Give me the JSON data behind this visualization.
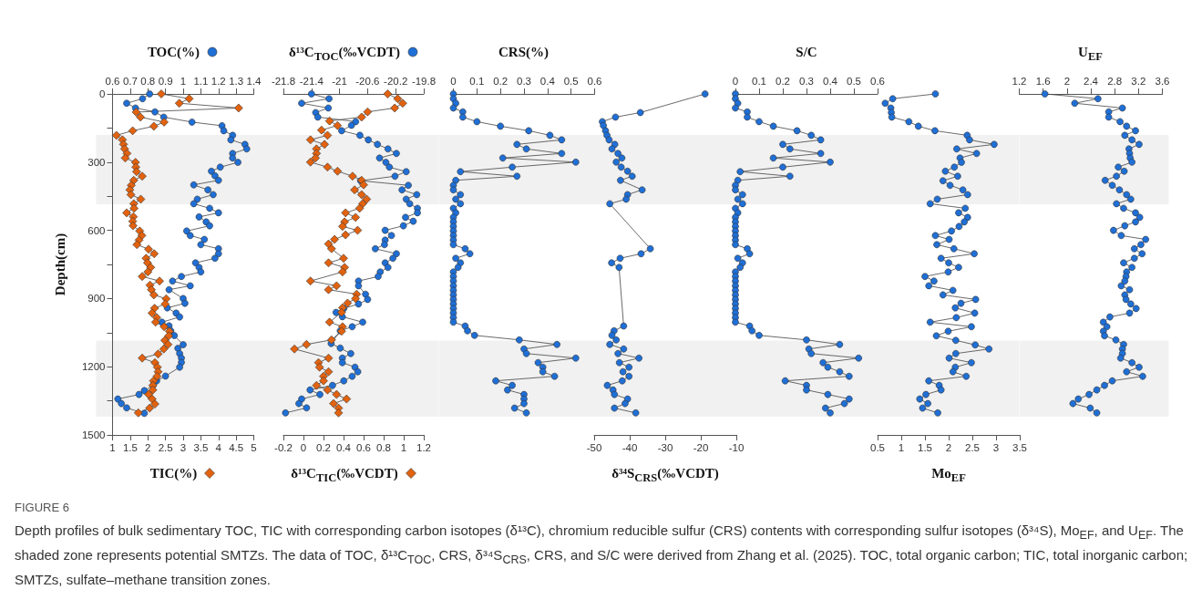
{
  "chart_data": [
    {
      "type": "line",
      "marker": "circle",
      "xlabel": "TIC(%)",
      "x2label": "TOC(%)",
      "title": "FIGURE 6",
      "annotations": [
        "Depth profiles of bulk sedimentary TOC, TIC with corresponding carbon isotopes (δ¹³C), chromium reducible sulfur (CRS) contents with corresponding sulfur isotopes (δ³⁴S), Mo$_{EF}$, and U$_{EF}$. The shaded zone represents potential SMTZs. The data of TOC, δ¹³C$_{TOC}$, CRS, δ³⁴S$_{CRS}$, CRS, and S/C were derived from Zhang et al. (2025). TOC, total organic carbon; TIC, total inorganic carbon; SMTZs, sulfate–methane transition zones."
      ],
      "ylabel": "Depth(cm)",
      "ylim": [
        1500,
        0
      ],
      "yticks": [
        0,
        {
          "value": 150,
          "label": null
        },
        300,
        {
          "value": 450,
          "label": null
        },
        600,
        {
          "value": 750,
          "label": null
        },
        900,
        {
          "value": 1050,
          "label": null
        },
        1200,
        {
          "value": 1350,
          "label": null
        },
        1500
      ],
      "x2lim": [
        0.6,
        1.4
      ],
      "x2ticks": [
        0.6,
        0.7,
        0.8,
        0.9,
        1,
        1.1,
        1.2,
        1.3,
        1.4
      ],
      "xlim": [
        1,
        5
      ],
      "xticks": [
        1,
        1.5,
        2,
        2.5,
        3,
        3.5,
        4,
        4.5,
        5
      ],
      "bands": [
        {
          "axis": "y",
          "from": 180,
          "to": 485,
          "color": "#f1f1f1"
        },
        {
          "axis": "y",
          "from": 1085,
          "to": 1420,
          "color": "#f1f1f1"
        }
      ],
      "series": [
        {
          "color": "#1f6fd6",
          "axis": "x2",
          "x": [
            0.81,
            0.77,
            0.68,
            0.73,
            0.84,
            0.89,
            1.05,
            1.22,
            1.23,
            1.28,
            1.27,
            1.35,
            1.36,
            1.28,
            1.28,
            1.31,
            1.21,
            1.16,
            1.18,
            1.2,
            1.06,
            1.14,
            1.17,
            1.08,
            1.06,
            1.15,
            1.2,
            1.09,
            1.13,
            1.15,
            1.02,
            1.04,
            1.12,
            1.1,
            1.2,
            1.2,
            1.18,
            1.07,
            1.09,
            1.1,
            0.99,
            0.94,
            1.04,
            0.92,
            1.0,
            1.01,
            0.91,
            0.96,
            0.98,
            0.88,
            0.92,
            0.93,
            0.95,
            1.0,
            0.97,
            0.98,
            0.99,
            0.99,
            0.98,
            0.9,
            0.85,
            0.83,
            0.78,
            0.75,
            0.63,
            0.65,
            0.68,
            0.78
          ],
          "values": [
            0,
            21,
            41,
            62,
            79,
            102,
            124,
            140,
            162,
            182,
            202,
            222,
            242,
            262,
            282,
            301,
            322,
            340,
            360,
            380,
            400,
            422,
            443,
            463,
            483,
            503,
            523,
            541,
            563,
            580,
            603,
            623,
            640,
            663,
            681,
            703,
            723,
            743,
            763,
            783,
            803,
            823,
            844,
            861,
            900,
            921,
            941,
            964,
            981,
            1004,
            1020,
            1042,
            1063,
            1103,
            1119,
            1142,
            1162,
            1181,
            1202,
            1241,
            1262,
            1282,
            1305,
            1322,
            1342,
            1362,
            1381,
            1405
          ]
        },
        {
          "color": "#e2620f",
          "marker": "diamond",
          "x": [
            2.38,
            3.17,
            2.89,
            4.57,
            1.67,
            1.79,
            2.46,
            2.17,
            1.57,
            1.11,
            1.28,
            1.31,
            1.34,
            1.41,
            1.36,
            1.65,
            1.66,
            1.68,
            1.84,
            1.6,
            1.53,
            1.49,
            1.52,
            1.8,
            1.6,
            1.61,
            1.4,
            1.59,
            1.57,
            1.58,
            1.77,
            1.83,
            1.75,
            1.69,
            2.02,
            2.18,
            1.95,
            1.99,
            2.08,
            2.0,
            1.84,
            2.33,
            2.06,
            2.1,
            2.17,
            2.52,
            2.49,
            2.19,
            2.12,
            2.25,
            2.22,
            2.46,
            2.61,
            2.59,
            2.48,
            2.57,
            2.45,
            2.29,
            1.84,
            2.2,
            2.27,
            2.29,
            2.26,
            2.16,
            2.14,
            2.14,
            2.02,
            2.12,
            2.2,
            2.05,
            1.73
          ],
          "values": [
            0,
            21,
            41,
            62,
            80,
            102,
            124,
            142,
            162,
            182,
            202,
            222,
            242,
            262,
            282,
            301,
            322,
            342,
            362,
            380,
            402,
            422,
            443,
            463,
            483,
            503,
            523,
            540,
            560,
            580,
            603,
            623,
            643,
            663,
            683,
            703,
            723,
            743,
            763,
            783,
            803,
            823,
            841,
            861,
            884,
            901,
            924,
            943,
            964,
            984,
            1004,
            1024,
            1044,
            1064,
            1084,
            1102,
            1122,
            1144,
            1162,
            1182,
            1202,
            1222,
            1242,
            1262,
            1282,
            1302,
            1322,
            1342,
            1364,
            1382,
            1403
          ]
        }
      ]
    },
    {
      "type": "line",
      "marker": "circle",
      "xlabel": "δ¹³C$_{TIC}$(‰VCDT)",
      "x2label": "δ¹³C$_{TOC}$(‰VCDT)",
      "tick_labels": "x",
      "ylim": [
        1500,
        0
      ],
      "x2lim": [
        -21.8,
        -19.8
      ],
      "x2ticks": [
        -21.8,
        -21.4,
        -21,
        -20.6,
        -20.2,
        -19.8
      ],
      "xlim": [
        -0.2,
        1.2
      ],
      "xticks": [
        -0.2,
        0,
        0.2,
        0.4,
        0.6,
        0.8,
        1,
        1.2
      ],
      "bands": [
        {
          "axis": "y",
          "from": 180,
          "to": 485,
          "color": "#f1f1f1"
        },
        {
          "axis": "y",
          "from": 1085,
          "to": 1420,
          "color": "#f1f1f1"
        }
      ],
      "series": [
        {
          "color": "#1f6fd6",
          "axis": "x2",
          "x": [
            -21.4,
            -21.15,
            -21.54,
            -21.16,
            -21.34,
            -21.31,
            -20.77,
            -20.83,
            -20.97,
            -20.71,
            -20.59,
            -20.46,
            -20.31,
            -20.19,
            -20.43,
            -20.34,
            -20.29,
            -20.05,
            -20.21,
            -20.7,
            -20.02,
            -20.11,
            -19.9,
            -20.05,
            -20.0,
            -19.89,
            -19.89,
            -20.06,
            -19.95,
            -20.09,
            -20.35,
            -20.26,
            -20.35,
            -20.36,
            -20.49,
            -20.19,
            -20.24,
            -20.35,
            -20.31,
            -20.42,
            -20.45,
            -20.73,
            -20.73,
            -20.63,
            -20.6,
            -20.73,
            -20.94,
            -21.05,
            -20.96,
            -20.67,
            -20.82,
            -20.99,
            -21.12,
            -20.99,
            -20.84,
            -20.96,
            -20.96,
            -20.78,
            -20.74,
            -20.82,
            -20.94,
            -21.1,
            -21.42,
            -21.28,
            -21.54,
            -21.58,
            -21.47,
            -21.77
          ],
          "values": [
            0,
            21,
            41,
            62,
            82,
            102,
            122,
            138,
            162,
            182,
            202,
            222,
            242,
            262,
            282,
            301,
            322,
            342,
            362,
            382,
            402,
            422,
            443,
            463,
            483,
            503,
            523,
            543,
            560,
            580,
            600,
            623,
            643,
            663,
            681,
            703,
            723,
            743,
            763,
            783,
            803,
            823,
            844,
            881,
            904,
            924,
            944,
            961,
            980,
            1004,
            1024,
            1042,
            1098,
            1118,
            1142,
            1162,
            1182,
            1202,
            1222,
            1242,
            1262,
            1282,
            1302,
            1322,
            1342,
            1362,
            1381,
            1403
          ]
        },
        {
          "color": "#e2620f",
          "marker": "diamond",
          "x": [
            0.84,
            0.94,
            0.99,
            0.91,
            0.64,
            0.58,
            0.26,
            0.34,
            0.18,
            0.24,
            0.07,
            0.21,
            0.13,
            0.13,
            0.12,
            0.07,
            0.24,
            0.34,
            0.49,
            0.58,
            0.6,
            0.51,
            0.58,
            0.63,
            0.59,
            0.56,
            0.42,
            0.52,
            0.41,
            0.39,
            0.54,
            0.42,
            0.31,
            0.25,
            0.28,
            0.4,
            0.25,
            0.41,
            0.39,
            0.07,
            0.33,
            0.25,
            0.53,
            0.52,
            0.44,
            0.39,
            0.38,
            0.26,
            0.39,
            0.38,
            0.28,
            0.03,
            -0.09,
            0.25,
            0.15,
            0.16,
            0.25,
            0.2,
            0.2,
            0.13,
            0.24,
            0.33,
            0.43,
            0.3,
            0.35,
            0.35
          ],
          "values": [
            0,
            21,
            41,
            62,
            79,
            102,
            119,
            139,
            159,
            182,
            202,
            222,
            242,
            262,
            282,
            300,
            322,
            340,
            362,
            380,
            400,
            422,
            443,
            463,
            483,
            503,
            523,
            543,
            563,
            583,
            600,
            620,
            640,
            660,
            681,
            723,
            743,
            763,
            783,
            823,
            844,
            861,
            881,
            900,
            920,
            941,
            961,
            1004,
            1024,
            1044,
            1082,
            1102,
            1122,
            1162,
            1182,
            1202,
            1222,
            1242,
            1262,
            1282,
            1302,
            1322,
            1342,
            1362,
            1382,
            1403
          ]
        }
      ]
    },
    {
      "type": "line",
      "marker": "circle",
      "tick_labels": "x",
      "ylim": [
        1500,
        0
      ],
      "xlabel": "CRS(%)",
      "xlim": [
        0,
        0.6
      ],
      "xticks": [
        0,
        0.1,
        0.2,
        0.3,
        0.4,
        0.5,
        0.6
      ],
      "bands": [
        {
          "axis": "y",
          "from": 180,
          "to": 485,
          "color": "#f1f1f1"
        },
        {
          "axis": "y",
          "from": 1085,
          "to": 1420,
          "color": "#f1f1f1"
        }
      ],
      "series": [
        {
          "color": "#1f6fd6",
          "x": [
            0,
            0,
            0.01,
            0,
            0.04,
            0.04,
            0.1,
            0.2,
            0.32,
            0.41,
            0.46,
            0.27,
            0.31,
            0.46,
            0.21,
            0.52,
            0.25,
            0.03,
            0.27,
            0.01,
            0,
            0,
            0.03,
            0.01,
            0.03,
            0,
            0.01,
            0,
            0,
            0,
            0,
            0,
            0,
            0,
            0.05,
            0.07,
            0.01,
            0.03,
            0.02,
            0,
            0,
            0,
            0,
            0,
            0,
            0,
            0,
            0,
            0,
            0,
            0,
            0.05,
            0.06,
            0.09,
            0.28,
            0.44,
            0.3,
            0.31,
            0.52,
            0.36,
            0.38,
            0.38,
            0.43,
            0.18,
            0.25,
            0.23,
            0.3,
            0.3,
            0.3,
            0.26,
            0.31
          ],
          "values": [
            0,
            21,
            41,
            62,
            79,
            102,
            122,
            142,
            162,
            182,
            202,
            222,
            242,
            262,
            282,
            300,
            322,
            342,
            362,
            380,
            402,
            422,
            443,
            463,
            483,
            503,
            523,
            543,
            563,
            583,
            603,
            623,
            643,
            663,
            681,
            703,
            723,
            743,
            763,
            783,
            803,
            823,
            844,
            864,
            884,
            904,
            924,
            944,
            964,
            984,
            1004,
            1021,
            1042,
            1062,
            1082,
            1102,
            1122,
            1142,
            1162,
            1182,
            1202,
            1222,
            1242,
            1262,
            1282,
            1302,
            1322,
            1342,
            1362,
            1382,
            1403
          ]
        }
      ]
    },
    {
      "type": "line",
      "marker": "circle",
      "tick_labels": "x",
      "ylim": [
        1500,
        0
      ],
      "xlabel": "δ³⁴S$_{CRS}$(‰VCDT)",
      "xlim": [
        -50,
        -10
      ],
      "xticks": [
        -50,
        -40,
        -30,
        -20,
        -10
      ],
      "bands": [
        {
          "axis": "y",
          "from": 180,
          "to": 485,
          "color": "#f1f1f1"
        },
        {
          "axis": "y",
          "from": 1085,
          "to": 1420,
          "color": "#f1f1f1"
        }
      ],
      "series": [
        {
          "color": "#1f6fd6",
          "x": [
            -18.8,
            -37.0,
            -44.0,
            -47.7,
            -47.4,
            -46.8,
            -46.4,
            -45.8,
            -44.2,
            -45.0,
            -43.3,
            -42.2,
            -43.8,
            -42.4,
            -40.6,
            -39.3,
            -42.6,
            -36.5,
            -40.6,
            -41.0,
            -45.6,
            -34.2,
            -36.8,
            -42.7,
            -45.1,
            -43.0,
            -41.7,
            -44.4,
            -45.0,
            -43.8,
            -45.6,
            -41.7,
            -43.3,
            -37.4,
            -42.9,
            -40.2,
            -41.9,
            -40.2,
            -42.1,
            -46.3,
            -44.7,
            -44.3,
            -40.6,
            -41.3,
            -44.3,
            -38.3
          ],
          "values": [
            0,
            82,
            102,
            122,
            139,
            162,
            182,
            202,
            222,
            242,
            262,
            282,
            300,
            322,
            340,
            362,
            380,
            422,
            443,
            463,
            483,
            681,
            703,
            723,
            743,
            763,
            1021,
            1042,
            1062,
            1082,
            1102,
            1122,
            1142,
            1162,
            1182,
            1202,
            1222,
            1242,
            1262,
            1282,
            1302,
            1322,
            1342,
            1362,
            1382,
            1403
          ]
        }
      ]
    },
    {
      "type": "line",
      "marker": "circle",
      "tick_labels": "x",
      "ylim": [
        1500,
        0
      ],
      "xlabel": "S/C",
      "xlim": [
        0,
        0.6
      ],
      "xticks": [
        0,
        0.1,
        0.2,
        0.3,
        0.4,
        0.5,
        0.6
      ],
      "bands": [
        {
          "axis": "y",
          "from": 180,
          "to": 485,
          "color": "#f1f1f1"
        },
        {
          "axis": "y",
          "from": 1085,
          "to": 1420,
          "color": "#f1f1f1"
        }
      ],
      "series": [
        {
          "color": "#1f6fd6",
          "x": [
            0,
            0,
            0.01,
            0,
            0.05,
            0.05,
            0.1,
            0.16,
            0.26,
            0.32,
            0.36,
            0.2,
            0.23,
            0.36,
            0.16,
            0.4,
            0.2,
            0.02,
            0.23,
            0.01,
            0,
            0,
            0.03,
            0.01,
            0.03,
            0,
            0.01,
            0,
            0,
            0,
            0,
            0,
            0,
            0,
            0.05,
            0.06,
            0.01,
            0.03,
            0.02,
            0,
            0,
            0,
            0,
            0,
            0,
            0,
            0,
            0,
            0,
            0,
            0,
            0.06,
            0.07,
            0.1,
            0.3,
            0.44,
            0.31,
            0.32,
            0.52,
            0.37,
            0.39,
            0.44,
            0.48,
            0.21,
            0.3,
            0.3,
            0.39,
            0.48,
            0.46,
            0.38,
            0.4
          ],
          "values": [
            0,
            21,
            41,
            62,
            79,
            102,
            122,
            142,
            162,
            182,
            202,
            222,
            242,
            262,
            282,
            300,
            322,
            342,
            362,
            380,
            402,
            422,
            443,
            463,
            483,
            503,
            523,
            543,
            563,
            583,
            603,
            623,
            643,
            663,
            681,
            703,
            723,
            743,
            763,
            783,
            803,
            823,
            844,
            864,
            884,
            904,
            924,
            944,
            964,
            984,
            1004,
            1021,
            1042,
            1062,
            1082,
            1102,
            1122,
            1142,
            1162,
            1182,
            1202,
            1222,
            1242,
            1262,
            1282,
            1302,
            1322,
            1342,
            1362,
            1382,
            1403
          ]
        }
      ]
    },
    {
      "type": "line",
      "marker": "circle",
      "tick_labels": "x",
      "ylim": [
        1500,
        0
      ],
      "xlabel": "Mo$_{EF}$",
      "xlim": [
        0.5,
        3.5
      ],
      "xticks": [
        0.5,
        1,
        1.5,
        2,
        2.5,
        3,
        3.5
      ],
      "bands": [
        {
          "axis": "y",
          "from": 180,
          "to": 485,
          "color": "#f1f1f1"
        },
        {
          "axis": "y",
          "from": 1085,
          "to": 1420,
          "color": "#f1f1f1"
        }
      ],
      "series": [
        {
          "color": "#1f6fd6",
          "x": [
            1.72,
            0.82,
            0.66,
            0.78,
            0.79,
            0.8,
            1.16,
            1.36,
            1.71,
            2.39,
            2.44,
            2.96,
            2.17,
            2.59,
            2.24,
            2.27,
            2.12,
            1.93,
            2.19,
            1.88,
            2.03,
            2.3,
            2.4,
            1.76,
            1.61,
            2.35,
            2.21,
            2.4,
            2.33,
            2.22,
            2.06,
            1.72,
            2.01,
            1.75,
            2.11,
            2.54,
            1.84,
            2.0,
            2.21,
            1.99,
            1.5,
            1.69,
            1.58,
            2.09,
            1.88,
            2.57,
            2.26,
            2.14,
            2.55,
            2.16,
            1.61,
            2.48,
            1.99,
            1.74,
            2.15,
            2.56,
            2.85,
            2.15,
            2.01,
            2.48,
            2.14,
            2.09,
            2.37,
            1.58,
            1.8,
            1.84,
            1.52,
            1.39,
            1.56,
            1.45,
            1.77
          ],
          "values": [
            0,
            21,
            41,
            62,
            82,
            102,
            122,
            142,
            162,
            182,
            202,
            222,
            242,
            262,
            282,
            301,
            322,
            340,
            362,
            382,
            402,
            422,
            443,
            463,
            483,
            503,
            523,
            543,
            563,
            583,
            603,
            623,
            640,
            663,
            681,
            703,
            723,
            743,
            763,
            783,
            803,
            823,
            844,
            864,
            884,
            904,
            921,
            941,
            964,
            984,
            1004,
            1024,
            1044,
            1064,
            1084,
            1104,
            1122,
            1142,
            1162,
            1182,
            1202,
            1222,
            1242,
            1262,
            1282,
            1302,
            1322,
            1342,
            1362,
            1382,
            1403
          ]
        }
      ]
    },
    {
      "type": "line",
      "marker": "circle",
      "tick_labels": "x",
      "ylim": [
        1500,
        0
      ],
      "xlabel": "U$_{EF}$",
      "xlim": [
        1.2,
        3.6
      ],
      "xticks": [
        1.2,
        1.6,
        2,
        2.4,
        2.8,
        3.2,
        3.6
      ],
      "bands": [
        {
          "axis": "y",
          "from": 180,
          "to": 485,
          "color": "#f1f1f1"
        },
        {
          "axis": "y",
          "from": 1085,
          "to": 1420,
          "color": "#f1f1f1"
        }
      ],
      "series": [
        {
          "color": "#1f6fd6",
          "x": [
            1.63,
            2.52,
            2.13,
            2.93,
            2.7,
            2.7,
            2.89,
            3.0,
            3.15,
            2.97,
            3.09,
            3.21,
            3.04,
            3.05,
            3.06,
            3.09,
            2.86,
            2.96,
            2.83,
            2.64,
            2.76,
            2.88,
            3.0,
            3.07,
            2.83,
            2.95,
            3.15,
            3.22,
            3.15,
            2.97,
            2.78,
            2.91,
            3.32,
            3.24,
            3.13,
            3.26,
            3.13,
            2.95,
            3.09,
            3.0,
            2.99,
            2.97,
            2.91,
            3.05,
            2.97,
            2.99,
            3.07,
            3.16,
            3.05,
            2.72,
            2.61,
            2.67,
            2.61,
            2.63,
            2.82,
            2.95,
            2.93,
            2.93,
            2.9,
            3.09,
            3.21,
            3.0,
            3.27,
            2.76,
            2.63,
            2.5,
            2.37,
            2.19,
            2.1,
            2.39,
            2.5
          ],
          "values": [
            0,
            21,
            41,
            62,
            79,
            102,
            122,
            142,
            162,
            182,
            202,
            222,
            242,
            262,
            282,
            300,
            322,
            340,
            362,
            380,
            402,
            422,
            443,
            463,
            483,
            503,
            523,
            543,
            563,
            580,
            600,
            623,
            640,
            663,
            681,
            703,
            723,
            743,
            763,
            783,
            803,
            823,
            844,
            861,
            884,
            904,
            924,
            944,
            964,
            981,
            1004,
            1024,
            1044,
            1064,
            1082,
            1102,
            1122,
            1142,
            1162,
            1182,
            1202,
            1222,
            1242,
            1262,
            1282,
            1302,
            1322,
            1342,
            1362,
            1382,
            1403
          ]
        }
      ]
    }
  ]
}
